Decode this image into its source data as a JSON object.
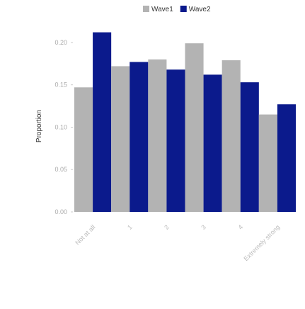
{
  "chart_data": {
    "type": "bar",
    "y_label": "Proportion",
    "categories": [
      "Not at all",
      "1",
      "2",
      "3",
      "4",
      "Extremely strong"
    ],
    "series": [
      {
        "name": "Wave1",
        "color": "#b3b3b3",
        "values": [
          0.147,
          0.172,
          0.18,
          0.199,
          0.179,
          0.115
        ]
      },
      {
        "name": "Wave2",
        "color": "#0b1a8c",
        "values": [
          0.212,
          0.177,
          0.168,
          0.162,
          0.153,
          0.127
        ]
      }
    ],
    "ylim": [
      0,
      0.215
    ],
    "yticks": [
      {
        "value": 0,
        "label": "0.00"
      },
      {
        "value": 0.05,
        "label": "0.05"
      },
      {
        "value": 0.1,
        "label": "0.10"
      },
      {
        "value": 0.15,
        "label": "0.15"
      },
      {
        "value": 0.2,
        "label": "0.20"
      }
    ],
    "legend": "top"
  }
}
